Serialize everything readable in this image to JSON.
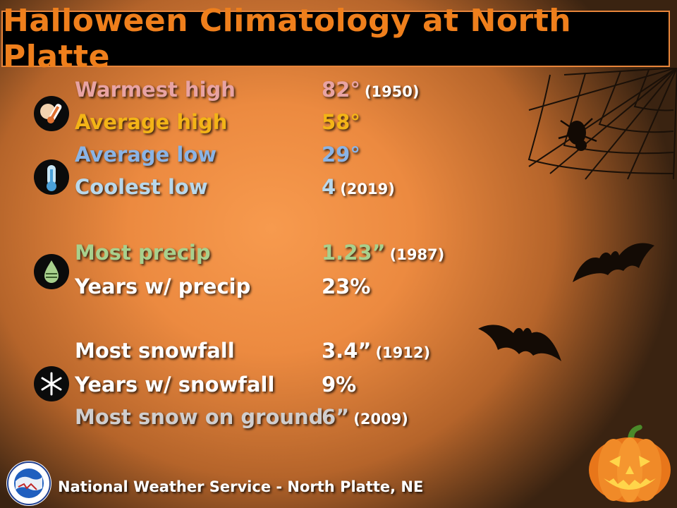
{
  "title": "Halloween Climatology at North Platte",
  "temperature": [
    {
      "label": "Warmest high",
      "value": "82°",
      "year": "(1950)",
      "color": "#e8a3a3"
    },
    {
      "label": "Average high",
      "value": "58°",
      "year": "",
      "color": "#f3b417"
    },
    {
      "label": "Average low",
      "value": "29°",
      "year": "",
      "color": "#8ab4e6"
    },
    {
      "label": "Coolest low",
      "value": "4",
      "year": "(2019)",
      "color": "#b8d8ec"
    }
  ],
  "precip": [
    {
      "label": "Most precip",
      "value": "1.23”",
      "year": "(1987)",
      "color": "#a8d08d"
    },
    {
      "label": "Years w/ precip",
      "value": "23%",
      "year": "",
      "color": "#ffffff"
    }
  ],
  "snow": [
    {
      "label": "Most snowfall",
      "value": "3.4”",
      "year": "(1912)",
      "color": "#ffffff"
    },
    {
      "label": "Years w/ snowfall",
      "value": "9%",
      "year": "",
      "color": "#ffffff"
    },
    {
      "label": "Most snow on ground",
      "value": "6”",
      "year": "(2009)",
      "color": "#d0cece"
    }
  ],
  "footer": "National Weather Service  -  North Platte, NE",
  "icons": [
    "thermometer-hot-icon",
    "thermometer-cold-icon",
    "raindrop-icon",
    "snowflake-icon"
  ]
}
